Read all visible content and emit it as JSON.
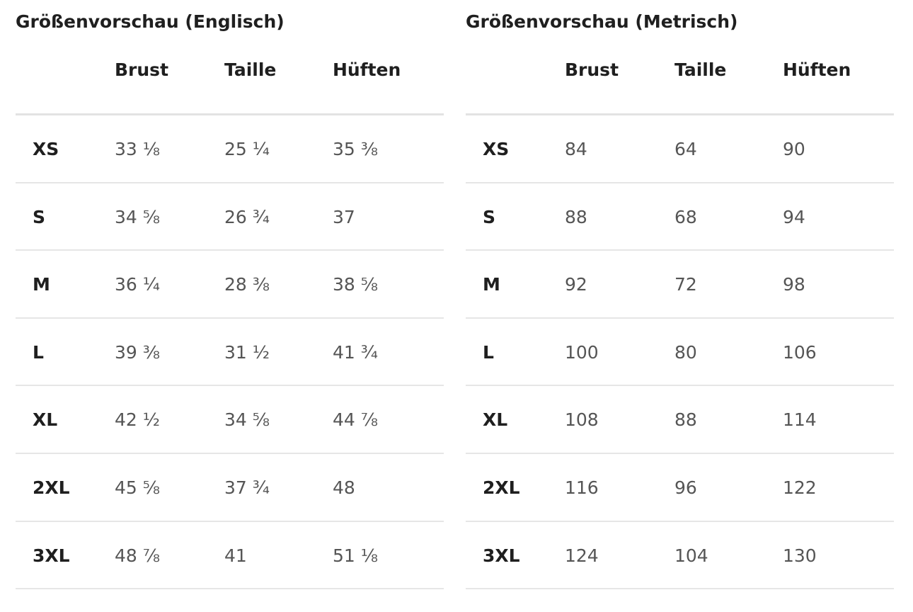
{
  "tables": [
    {
      "title": "Größenvorschau (Englisch)",
      "columns": [
        "Brust",
        "Taille",
        "Hüften"
      ],
      "rows": [
        {
          "size": "XS",
          "values": [
            "33 ⅛",
            "25 ¼",
            "35 ⅜"
          ]
        },
        {
          "size": "S",
          "values": [
            "34 ⅝",
            "26 ¾",
            "37"
          ]
        },
        {
          "size": "M",
          "values": [
            "36 ¼",
            "28 ⅜",
            "38 ⅝"
          ]
        },
        {
          "size": "L",
          "values": [
            "39 ⅜",
            "31 ½",
            "41 ¾"
          ]
        },
        {
          "size": "XL",
          "values": [
            "42 ½",
            "34 ⅝",
            "44 ⅞"
          ]
        },
        {
          "size": "2XL",
          "values": [
            "45 ⅝",
            "37 ¾",
            "48"
          ]
        },
        {
          "size": "3XL",
          "values": [
            "48 ⅞",
            "41",
            "51 ⅛"
          ]
        }
      ]
    },
    {
      "title": "Größenvorschau (Metrisch)",
      "columns": [
        "Brust",
        "Taille",
        "Hüften"
      ],
      "rows": [
        {
          "size": "XS",
          "values": [
            "84",
            "64",
            "90"
          ]
        },
        {
          "size": "S",
          "values": [
            "88",
            "68",
            "94"
          ]
        },
        {
          "size": "M",
          "values": [
            "92",
            "72",
            "98"
          ]
        },
        {
          "size": "L",
          "values": [
            "100",
            "80",
            "106"
          ]
        },
        {
          "size": "XL",
          "values": [
            "108",
            "88",
            "114"
          ]
        },
        {
          "size": "2XL",
          "values": [
            "116",
            "96",
            "122"
          ]
        },
        {
          "size": "3XL",
          "values": [
            "124",
            "104",
            "130"
          ]
        }
      ]
    }
  ],
  "colors": {
    "heading": "#1f1f1f",
    "value": "#555555",
    "rule": "#e6e6e6",
    "background": "#ffffff"
  }
}
